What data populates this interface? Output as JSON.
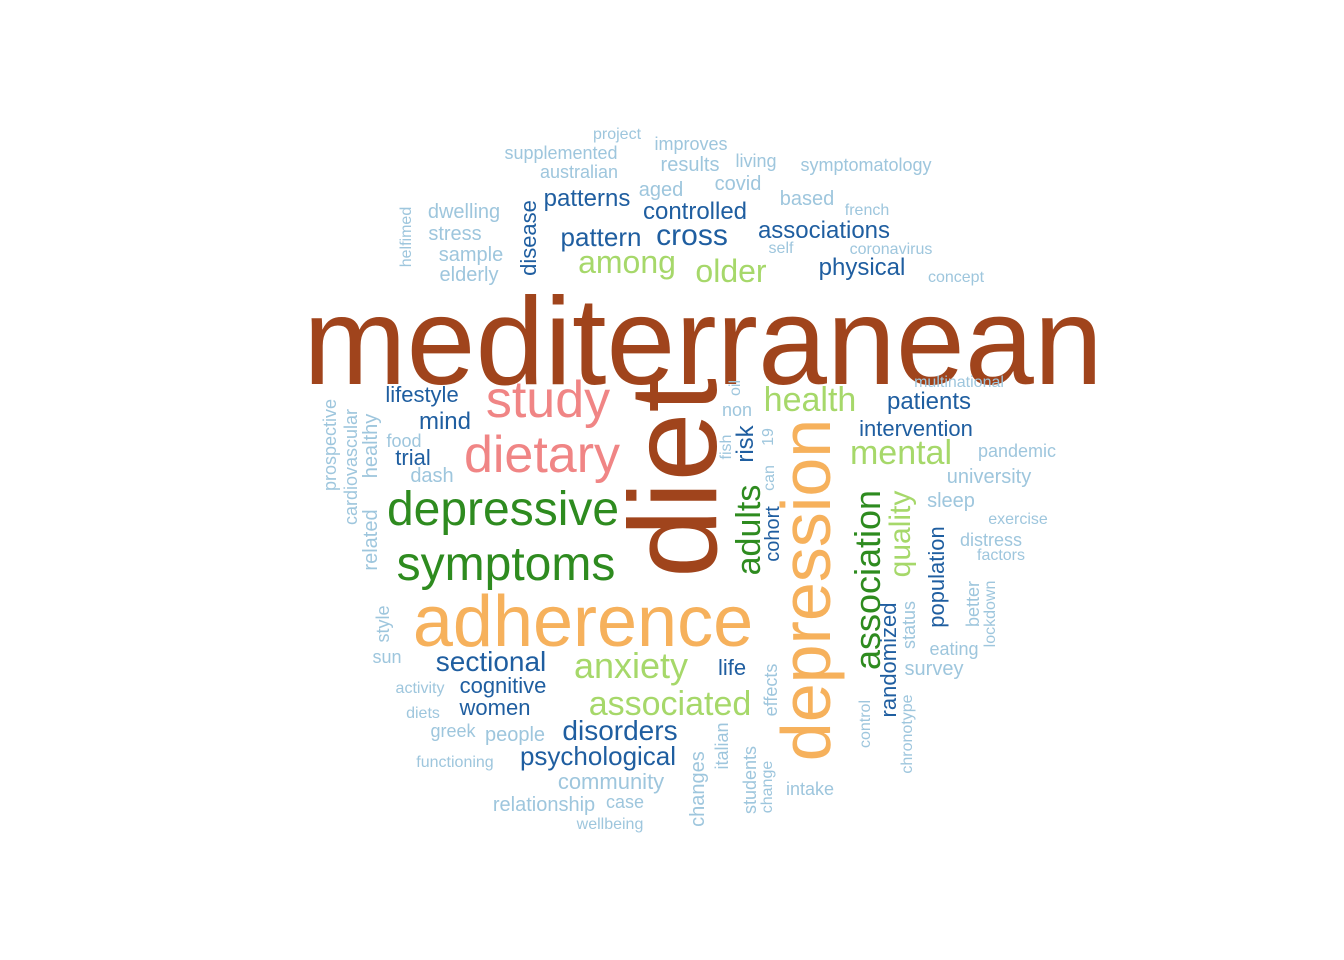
{
  "palette": {
    "brown": "#a0441c",
    "orange": "#f6b15c",
    "pink": "#f08585",
    "dark_green": "#2e8b1f",
    "light_green": "#a6d86a",
    "dark_blue": "#1f5ea0",
    "light_blue": "#9ec6dd"
  },
  "words": [
    {
      "text": "mediterranean",
      "color": "brown"
    },
    {
      "text": "diet",
      "color": "brown"
    },
    {
      "text": "adherence",
      "color": "orange"
    },
    {
      "text": "depression",
      "color": "orange"
    },
    {
      "text": "study",
      "color": "pink"
    },
    {
      "text": "dietary",
      "color": "pink"
    },
    {
      "text": "depressive",
      "color": "dark_green"
    },
    {
      "text": "symptoms",
      "color": "dark_green"
    },
    {
      "text": "adults",
      "color": "dark_green"
    },
    {
      "text": "association",
      "color": "dark_green"
    },
    {
      "text": "anxiety",
      "color": "light_green"
    },
    {
      "text": "associated",
      "color": "light_green"
    },
    {
      "text": "among",
      "color": "light_green"
    },
    {
      "text": "older",
      "color": "light_green"
    },
    {
      "text": "health",
      "color": "light_green"
    },
    {
      "text": "mental",
      "color": "light_green"
    },
    {
      "text": "quality",
      "color": "light_green"
    },
    {
      "text": "patterns",
      "color": "dark_blue"
    },
    {
      "text": "controlled",
      "color": "dark_blue"
    },
    {
      "text": "associations",
      "color": "dark_blue"
    },
    {
      "text": "pattern",
      "color": "dark_blue"
    },
    {
      "text": "cross",
      "color": "dark_blue"
    },
    {
      "text": "physical",
      "color": "dark_blue"
    },
    {
      "text": "disease",
      "color": "dark_blue"
    },
    {
      "text": "lifestyle",
      "color": "dark_blue"
    },
    {
      "text": "mind",
      "color": "dark_blue"
    },
    {
      "text": "trial",
      "color": "dark_blue"
    },
    {
      "text": "patients",
      "color": "dark_blue"
    },
    {
      "text": "intervention",
      "color": "dark_blue"
    },
    {
      "text": "risk",
      "color": "dark_blue"
    },
    {
      "text": "cohort",
      "color": "dark_blue"
    },
    {
      "text": "population",
      "color": "dark_blue"
    },
    {
      "text": "randomized",
      "color": "dark_blue"
    },
    {
      "text": "sectional",
      "color": "dark_blue"
    },
    {
      "text": "cognitive",
      "color": "dark_blue"
    },
    {
      "text": "women",
      "color": "dark_blue"
    },
    {
      "text": "disorders",
      "color": "dark_blue"
    },
    {
      "text": "psychological",
      "color": "dark_blue"
    },
    {
      "text": "life",
      "color": "dark_blue"
    },
    {
      "text": "project",
      "color": "light_blue"
    },
    {
      "text": "improves",
      "color": "light_blue"
    },
    {
      "text": "supplemented",
      "color": "light_blue"
    },
    {
      "text": "results",
      "color": "light_blue"
    },
    {
      "text": "living",
      "color": "light_blue"
    },
    {
      "text": "symptomatology",
      "color": "light_blue"
    },
    {
      "text": "australian",
      "color": "light_blue"
    },
    {
      "text": "aged",
      "color": "light_blue"
    },
    {
      "text": "covid",
      "color": "light_blue"
    },
    {
      "text": "based",
      "color": "light_blue"
    },
    {
      "text": "dwelling",
      "color": "light_blue"
    },
    {
      "text": "french",
      "color": "light_blue"
    },
    {
      "text": "helfimed",
      "color": "light_blue"
    },
    {
      "text": "stress",
      "color": "light_blue"
    },
    {
      "text": "self",
      "color": "light_blue"
    },
    {
      "text": "coronavirus",
      "color": "light_blue"
    },
    {
      "text": "sample",
      "color": "light_blue"
    },
    {
      "text": "elderly",
      "color": "light_blue"
    },
    {
      "text": "concept",
      "color": "light_blue"
    },
    {
      "text": "oil",
      "color": "light_blue"
    },
    {
      "text": "multinational",
      "color": "light_blue"
    },
    {
      "text": "non",
      "color": "light_blue"
    },
    {
      "text": "prospective",
      "color": "light_blue"
    },
    {
      "text": "cardiovascular",
      "color": "light_blue"
    },
    {
      "text": "related",
      "color": "light_blue"
    },
    {
      "text": "healthy",
      "color": "light_blue"
    },
    {
      "text": "food",
      "color": "light_blue"
    },
    {
      "text": "dash",
      "color": "light_blue"
    },
    {
      "text": "fish",
      "color": "light_blue"
    },
    {
      "text": "can",
      "color": "light_blue"
    },
    {
      "text": "19",
      "color": "light_blue"
    },
    {
      "text": "pandemic",
      "color": "light_blue"
    },
    {
      "text": "university",
      "color": "light_blue"
    },
    {
      "text": "sleep",
      "color": "light_blue"
    },
    {
      "text": "exercise",
      "color": "light_blue"
    },
    {
      "text": "distress",
      "color": "light_blue"
    },
    {
      "text": "factors",
      "color": "light_blue"
    },
    {
      "text": "better",
      "color": "light_blue"
    },
    {
      "text": "lockdown",
      "color": "light_blue"
    },
    {
      "text": "style",
      "color": "light_blue"
    },
    {
      "text": "sun",
      "color": "light_blue"
    },
    {
      "text": "status",
      "color": "light_blue"
    },
    {
      "text": "eating",
      "color": "light_blue"
    },
    {
      "text": "survey",
      "color": "light_blue"
    },
    {
      "text": "activity",
      "color": "light_blue"
    },
    {
      "text": "effects",
      "color": "light_blue"
    },
    {
      "text": "diets",
      "color": "light_blue"
    },
    {
      "text": "greek",
      "color": "light_blue"
    },
    {
      "text": "people",
      "color": "light_blue"
    },
    {
      "text": "italian",
      "color": "light_blue"
    },
    {
      "text": "control",
      "color": "light_blue"
    },
    {
      "text": "chronotype",
      "color": "light_blue"
    },
    {
      "text": "functioning",
      "color": "light_blue"
    },
    {
      "text": "community",
      "color": "light_blue"
    },
    {
      "text": "changes",
      "color": "light_blue"
    },
    {
      "text": "students",
      "color": "light_blue"
    },
    {
      "text": "change",
      "color": "light_blue"
    },
    {
      "text": "intake",
      "color": "light_blue"
    },
    {
      "text": "relationship",
      "color": "light_blue"
    },
    {
      "text": "case",
      "color": "light_blue"
    },
    {
      "text": "wellbeing",
      "color": "light_blue"
    }
  ]
}
